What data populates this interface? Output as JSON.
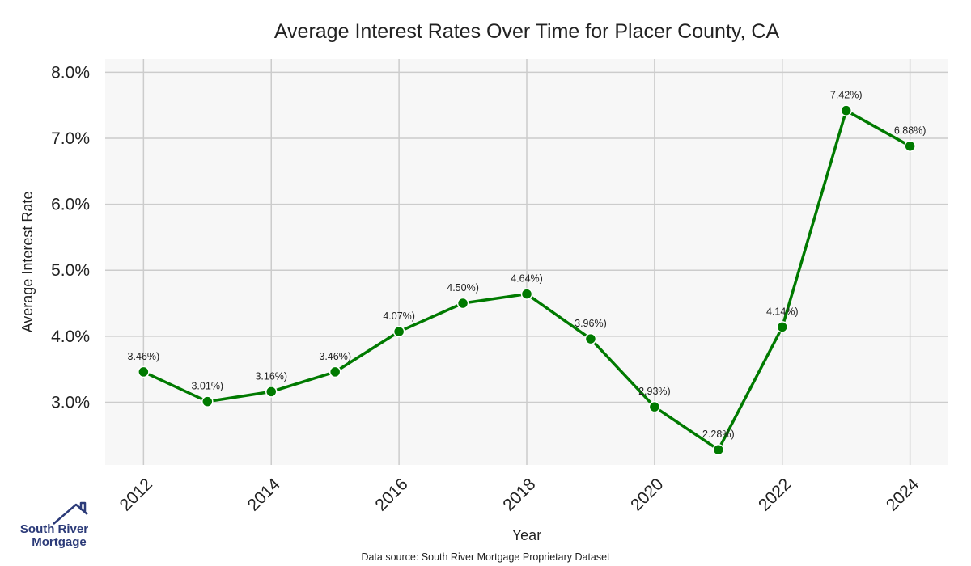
{
  "chart_data": {
    "type": "line",
    "title": "Average Interest Rates Over Time for Placer County, CA",
    "xlabel": "Year",
    "ylabel": "Average Interest Rate",
    "x": [
      2012,
      2013,
      2014,
      2015,
      2016,
      2017,
      2018,
      2019,
      2020,
      2021,
      2022,
      2023,
      2024
    ],
    "values": [
      3.46,
      3.01,
      3.16,
      3.46,
      4.07,
      4.5,
      4.64,
      3.96,
      2.93,
      2.28,
      4.14,
      7.42,
      6.88
    ],
    "data_labels": [
      "3.46%)",
      "3.01%)",
      "3.16%)",
      "3.46%)",
      "4.07%)",
      "4.50%)",
      "4.64%)",
      "3.96%)",
      "2.93%)",
      "2.28%)",
      "4.14%)",
      "7.42%)",
      "6.88%)"
    ],
    "xticks": [
      "2012",
      "2014",
      "2016",
      "2018",
      "2020",
      "2022",
      "2024"
    ],
    "yticks": [
      3.0,
      4.0,
      5.0,
      6.0,
      7.0,
      8.0
    ],
    "ytick_labels": [
      "3.0%",
      "4.0%",
      "5.0%",
      "6.0%",
      "7.0%",
      "8.0%"
    ],
    "xlim": [
      2011.4,
      2024.6
    ],
    "ylim": [
      2.05,
      8.2
    ],
    "grid": true,
    "line_color": "#007a00",
    "marker_color": "#007a00",
    "plot_background": "#f7f7f7",
    "grid_color": "#cccccc"
  },
  "footer": {
    "source": "Data source: South River Mortgage Proprietary Dataset"
  },
  "logo": {
    "line1": "South River",
    "line2": "Mortgage",
    "color": "#2b3a78"
  }
}
